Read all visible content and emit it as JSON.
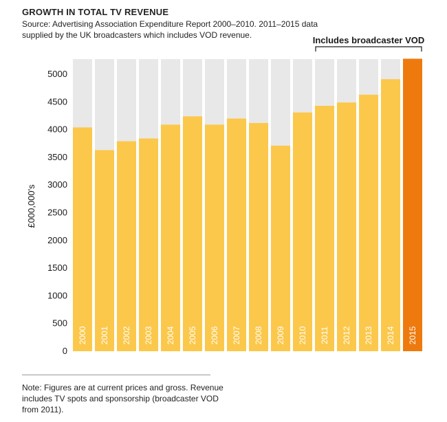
{
  "chart_data": {
    "type": "bar",
    "title": "GROWTH IN TOTAL TV REVENUE",
    "subtitle": "Source: Advertising Association Expenditure Report 2000–2010. 2011–2015 data supplied by the UK broadcasters which includes VOD revenue.",
    "ylabel": "£000,000's",
    "xlabel": "",
    "ylim": [
      0,
      5300
    ],
    "yticks": [
      0,
      500,
      1000,
      1500,
      2000,
      2500,
      3000,
      3500,
      4000,
      4500,
      5000
    ],
    "categories": [
      "2000",
      "2001",
      "2002",
      "2003",
      "2004",
      "2005",
      "2006",
      "2007",
      "2008",
      "2009",
      "2010",
      "2011",
      "2012",
      "2013",
      "2014",
      "2015"
    ],
    "values": [
      4040,
      3630,
      3790,
      3840,
      4090,
      4240,
      4090,
      4200,
      4120,
      3710,
      4310,
      4430,
      4490,
      4630,
      4910,
      5280
    ],
    "highlight_index": 15,
    "bracket": {
      "label": "Includes broadcaster VOD",
      "from": "2011",
      "to": "2015"
    },
    "note": "Note: Figures are at current prices and gross. Revenue includes TV spots and sponsorship (broadcaster VOD from 2011).",
    "colors": {
      "bar": "#FCC84B",
      "highlight": "#EE7A0E",
      "background": "#E8E8E8"
    },
    "grid": false
  }
}
